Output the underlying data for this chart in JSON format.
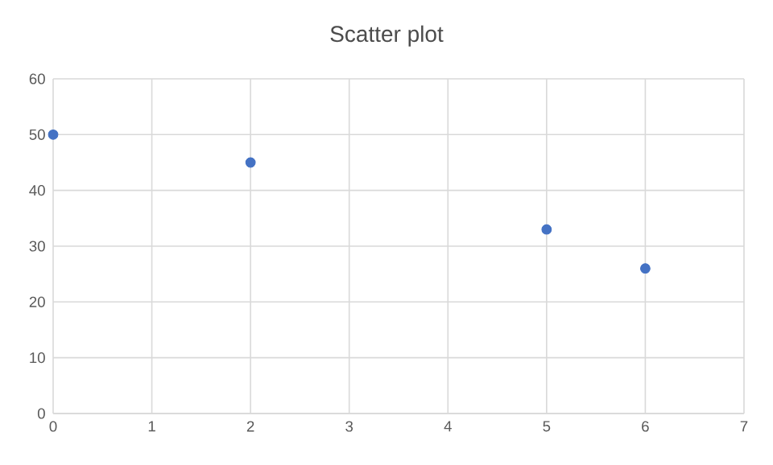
{
  "chart_data": {
    "type": "scatter",
    "title": "Scatter plot",
    "x": [
      0,
      2,
      5,
      6
    ],
    "values": [
      50,
      45,
      33,
      26
    ],
    "color": "#4472c4",
    "xlim": [
      0,
      7
    ],
    "xticks": [
      0,
      1,
      2,
      3,
      4,
      5,
      6,
      7
    ],
    "ylim": [
      0,
      60
    ],
    "yticks": [
      0,
      10,
      20,
      30,
      40,
      50,
      60
    ],
    "grid": true
  }
}
